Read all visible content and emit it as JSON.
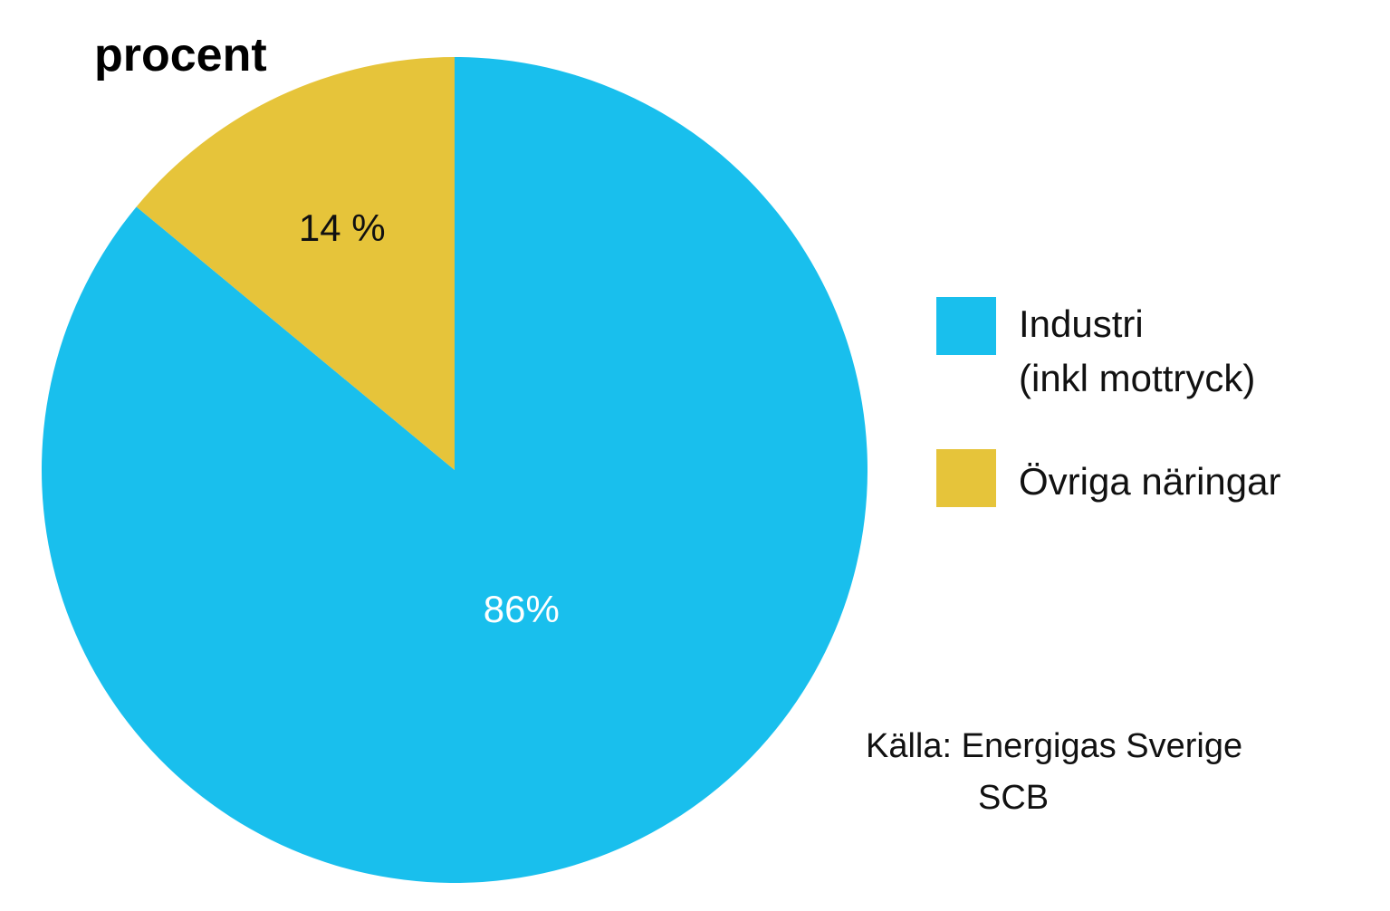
{
  "chart_data": {
    "type": "pie",
    "unit_label": "procent",
    "categories": [
      "Industri (inkl mottryck)",
      "Övriga näringar"
    ],
    "values": [
      86,
      14
    ],
    "data_labels": [
      "86%",
      "14 %"
    ],
    "colors": [
      "#19bfed",
      "#e6c43a"
    ],
    "label_colors": [
      "#ffffff",
      "#111111"
    ],
    "start_angle_deg": 0,
    "direction": "clockwise",
    "legend": {
      "placement": "right",
      "entries": [
        {
          "lines": [
            "Industri",
            "(inkl mottryck)"
          ],
          "color": "#19bfed"
        },
        {
          "lines": [
            "Övriga näringar"
          ],
          "color": "#e6c43a"
        }
      ]
    },
    "source": {
      "line1": "Källa: Energigas Sverige",
      "line2": "SCB"
    }
  }
}
